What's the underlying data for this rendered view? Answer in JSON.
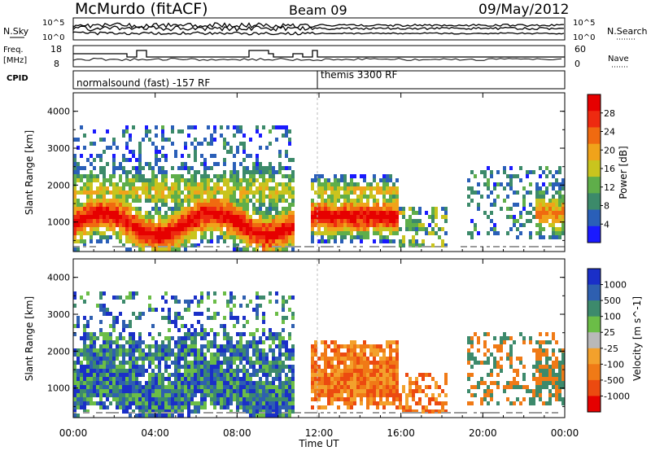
{
  "header": {
    "station": "McMurdo (fitACF)",
    "beam": "Beam 09",
    "date": "09/May/2012"
  },
  "noise_panel": {
    "left_label": "N.Sky",
    "right_label": "N.Search",
    "left_ticks": [
      "10^5",
      "10^0"
    ],
    "right_ticks": [
      "10^5",
      "10^0"
    ]
  },
  "freq_panel": {
    "left_label_1": "Freq.",
    "left_label_2": "[MHz]",
    "left_ticks": [
      "18",
      "8"
    ],
    "right_label": "Nave",
    "right_ticks": [
      "60",
      "0"
    ]
  },
  "cpid_panel": {
    "label": "CPID",
    "modes": [
      "normalsound (fast) -157 RF",
      "themis 3300 RF"
    ]
  },
  "colors": {
    "power_scale": [
      "#1a1aff",
      "#2a5fb8",
      "#3c8a6a",
      "#5fae4a",
      "#c9c41e",
      "#f0a31a",
      "#f06a10",
      "#ee2a10",
      "#e60000"
    ],
    "velocity_scale": [
      "#1a2fc8",
      "#2e5fb0",
      "#3d8a6c",
      "#6bbd47",
      "#b9b9b9",
      "#f3a12c",
      "#f07a16",
      "#ec4a10",
      "#e50000"
    ],
    "ground_scatter": "#9a9a9a"
  },
  "chart_data": [
    {
      "type": "heatmap",
      "title": "Power",
      "ylabel": "Slant Range [km]",
      "xlabel": "Time UT",
      "x_ticks": [
        "00:00",
        "04:00",
        "08:00",
        "12:00",
        "16:00",
        "20:00",
        "00:00"
      ],
      "y_ticks": [
        "1000",
        "2000",
        "3000",
        "4000"
      ],
      "ylim": [
        200,
        4500
      ],
      "colorbar_label": "Power [dB]",
      "colorbar_ticks": [
        "28",
        "24",
        "20",
        "16",
        "12",
        "8",
        "4"
      ],
      "colorbar_range": [
        0,
        30
      ]
    },
    {
      "type": "heatmap",
      "title": "Velocity",
      "ylabel": "Slant Range [km]",
      "xlabel": "Time UT",
      "x_ticks": [
        "00:00",
        "04:00",
        "08:00",
        "12:00",
        "16:00",
        "20:00",
        "00:00"
      ],
      "y_ticks": [
        "1000",
        "2000",
        "3000",
        "4000"
      ],
      "ylim": [
        200,
        4500
      ],
      "colorbar_label": "Velocity [m s^-1]",
      "colorbar_ticks": [
        "1000",
        "500",
        "100",
        "25",
        "-25",
        "-100",
        "-500",
        "-1000"
      ]
    }
  ],
  "x_axis_title": "Time UT"
}
